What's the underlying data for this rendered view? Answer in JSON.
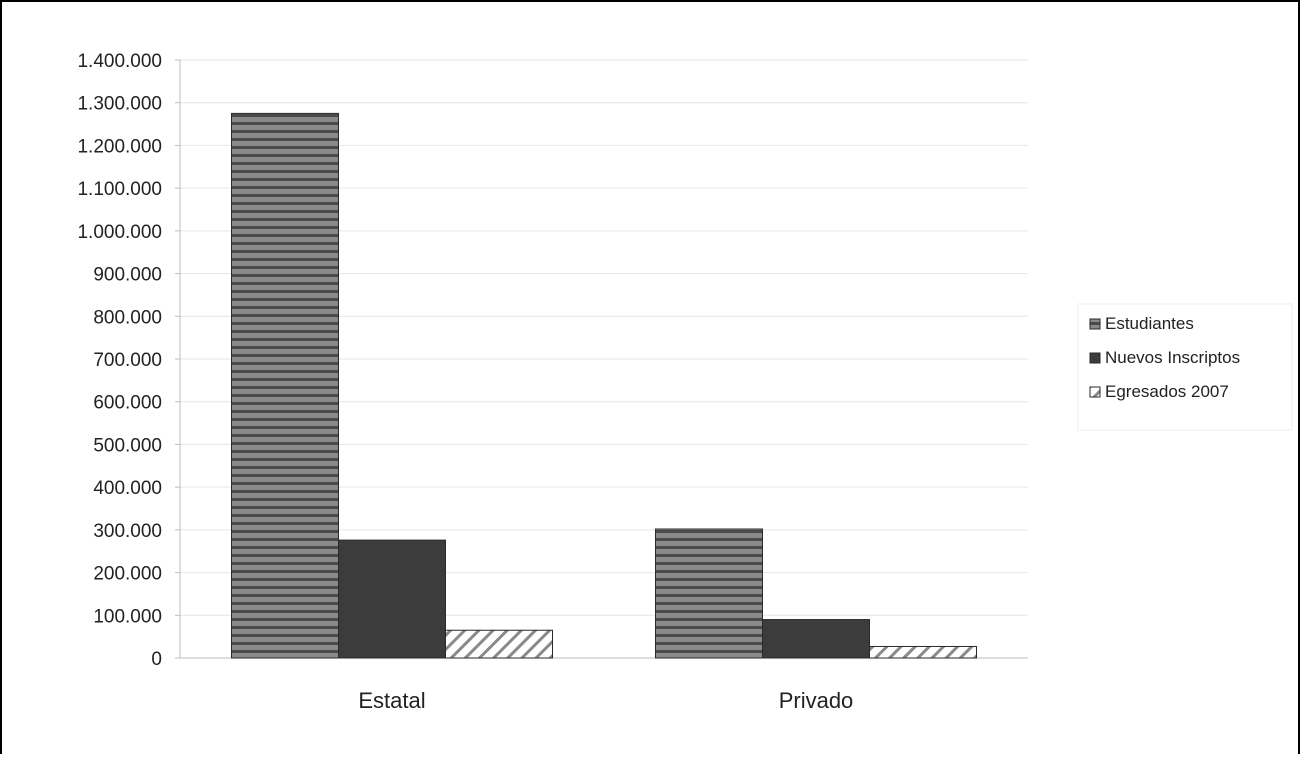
{
  "chart_data": {
    "type": "bar",
    "title": "",
    "xlabel": "",
    "ylabel": "",
    "categories": [
      "Estatal",
      "Privado"
    ],
    "series": [
      {
        "name": "Estudiantes",
        "values": [
          1275000,
          302000
        ],
        "color": "#6e6e6e",
        "pattern": "horizontal-stripes"
      },
      {
        "name": "Nuevos Inscriptos",
        "values": [
          276000,
          90000
        ],
        "color": "#3c3c3c",
        "pattern": "solid"
      },
      {
        "name": "Egresados 2007",
        "values": [
          65000,
          27000
        ],
        "color": "#ffffff",
        "pattern": "diagonal-hatch"
      }
    ],
    "ylim": [
      0,
      1400000
    ],
    "yticks": [
      "0",
      "100.000",
      "200.000",
      "300.000",
      "400.000",
      "500.000",
      "600.000",
      "700.000",
      "800.000",
      "900.000",
      "1.000.000",
      "1.100.000",
      "1.200.000",
      "1.300.000",
      "1.400.000"
    ],
    "grid": true,
    "legend_position": "right"
  }
}
